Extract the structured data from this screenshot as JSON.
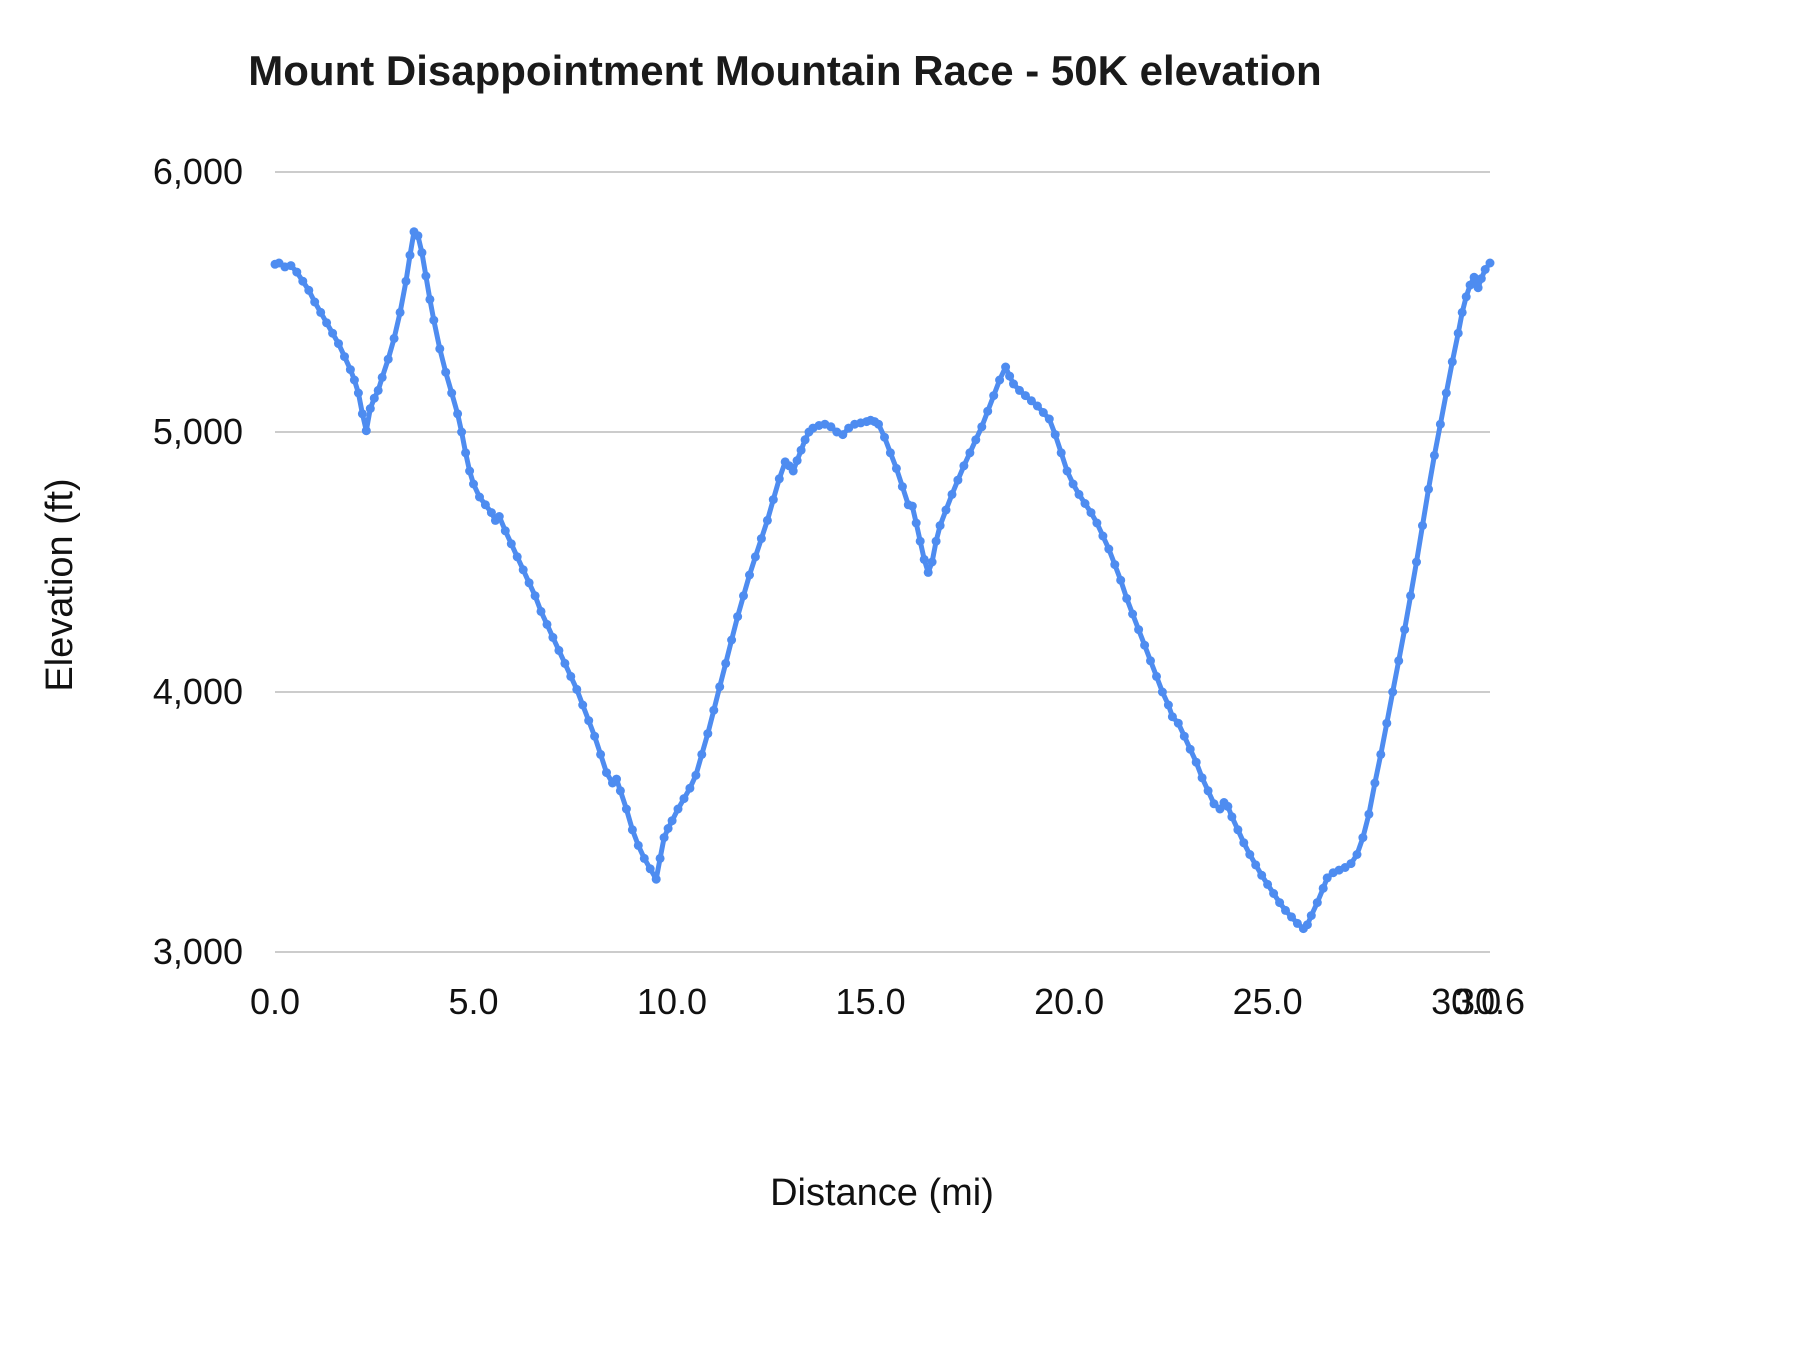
{
  "chart": {
    "title": "Mount Disappointment Mountain Race - 50K elevation",
    "x_axis_label": "Distance (mi)",
    "y_axis_label": "Elevation (ft)"
  },
  "chart_data": {
    "type": "line",
    "title": "Mount Disappointment Mountain Race - 50K elevation",
    "xlabel": "Distance (mi)",
    "ylabel": "Elevation (ft)",
    "xlim": [
      0,
      30.6
    ],
    "ylim": [
      3000,
      6000
    ],
    "grid": "horizontal-only",
    "legend": "none",
    "line_color": "#4e8cf0",
    "grid_color": "#cccccc",
    "x_ticks": [
      {
        "v": 0.0,
        "label": "0.0"
      },
      {
        "v": 5.0,
        "label": "5.0"
      },
      {
        "v": 10.0,
        "label": "10.0"
      },
      {
        "v": 15.0,
        "label": "15.0"
      },
      {
        "v": 20.0,
        "label": "20.0"
      },
      {
        "v": 25.0,
        "label": "25.0"
      },
      {
        "v": 30.0,
        "label": "30.0"
      },
      {
        "v": 30.6,
        "label": "30.6"
      }
    ],
    "y_ticks": [
      {
        "v": 3000,
        "label": "3,000"
      },
      {
        "v": 4000,
        "label": "4,000"
      },
      {
        "v": 5000,
        "label": "5,000"
      },
      {
        "v": 6000,
        "label": "6,000"
      }
    ],
    "points": [
      [
        0.0,
        5645
      ],
      [
        0.1,
        5650
      ],
      [
        0.25,
        5635
      ],
      [
        0.4,
        5640
      ],
      [
        0.55,
        5615
      ],
      [
        0.7,
        5580
      ],
      [
        0.85,
        5545
      ],
      [
        1.0,
        5500
      ],
      [
        1.15,
        5460
      ],
      [
        1.3,
        5420
      ],
      [
        1.45,
        5380
      ],
      [
        1.6,
        5340
      ],
      [
        1.75,
        5290
      ],
      [
        1.9,
        5240
      ],
      [
        2.0,
        5200
      ],
      [
        2.1,
        5150
      ],
      [
        2.2,
        5070
      ],
      [
        2.3,
        5005
      ],
      [
        2.4,
        5090
      ],
      [
        2.5,
        5130
      ],
      [
        2.6,
        5160
      ],
      [
        2.7,
        5210
      ],
      [
        2.85,
        5280
      ],
      [
        3.0,
        5360
      ],
      [
        3.15,
        5460
      ],
      [
        3.3,
        5580
      ],
      [
        3.4,
        5680
      ],
      [
        3.5,
        5770
      ],
      [
        3.6,
        5755
      ],
      [
        3.7,
        5690
      ],
      [
        3.8,
        5600
      ],
      [
        3.9,
        5510
      ],
      [
        4.0,
        5430
      ],
      [
        4.15,
        5320
      ],
      [
        4.3,
        5230
      ],
      [
        4.45,
        5150
      ],
      [
        4.6,
        5070
      ],
      [
        4.7,
        5000
      ],
      [
        4.8,
        4920
      ],
      [
        4.9,
        4850
      ],
      [
        5.0,
        4800
      ],
      [
        5.15,
        4750
      ],
      [
        5.3,
        4720
      ],
      [
        5.45,
        4690
      ],
      [
        5.55,
        4660
      ],
      [
        5.65,
        4675
      ],
      [
        5.8,
        4620
      ],
      [
        5.95,
        4570
      ],
      [
        6.1,
        4520
      ],
      [
        6.25,
        4470
      ],
      [
        6.4,
        4420
      ],
      [
        6.55,
        4370
      ],
      [
        6.7,
        4310
      ],
      [
        6.85,
        4260
      ],
      [
        7.0,
        4210
      ],
      [
        7.15,
        4160
      ],
      [
        7.3,
        4110
      ],
      [
        7.45,
        4060
      ],
      [
        7.6,
        4010
      ],
      [
        7.75,
        3950
      ],
      [
        7.9,
        3890
      ],
      [
        8.05,
        3830
      ],
      [
        8.2,
        3760
      ],
      [
        8.35,
        3690
      ],
      [
        8.5,
        3650
      ],
      [
        8.6,
        3665
      ],
      [
        8.7,
        3620
      ],
      [
        8.85,
        3550
      ],
      [
        9.0,
        3470
      ],
      [
        9.15,
        3410
      ],
      [
        9.3,
        3360
      ],
      [
        9.45,
        3320
      ],
      [
        9.6,
        3280
      ],
      [
        9.7,
        3360
      ],
      [
        9.8,
        3440
      ],
      [
        9.9,
        3475
      ],
      [
        10.0,
        3505
      ],
      [
        10.15,
        3550
      ],
      [
        10.3,
        3590
      ],
      [
        10.45,
        3630
      ],
      [
        10.6,
        3680
      ],
      [
        10.75,
        3760
      ],
      [
        10.9,
        3840
      ],
      [
        11.05,
        3930
      ],
      [
        11.2,
        4020
      ],
      [
        11.35,
        4110
      ],
      [
        11.5,
        4200
      ],
      [
        11.65,
        4290
      ],
      [
        11.8,
        4370
      ],
      [
        11.95,
        4450
      ],
      [
        12.1,
        4520
      ],
      [
        12.25,
        4590
      ],
      [
        12.4,
        4660
      ],
      [
        12.55,
        4740
      ],
      [
        12.7,
        4820
      ],
      [
        12.85,
        4885
      ],
      [
        12.95,
        4870
      ],
      [
        13.05,
        4850
      ],
      [
        13.15,
        4890
      ],
      [
        13.25,
        4930
      ],
      [
        13.35,
        4970
      ],
      [
        13.45,
        5000
      ],
      [
        13.55,
        5015
      ],
      [
        13.7,
        5025
      ],
      [
        13.85,
        5030
      ],
      [
        14.0,
        5020
      ],
      [
        14.15,
        5000
      ],
      [
        14.3,
        4990
      ],
      [
        14.45,
        5015
      ],
      [
        14.6,
        5030
      ],
      [
        14.75,
        5035
      ],
      [
        14.9,
        5040
      ],
      [
        15.0,
        5045
      ],
      [
        15.1,
        5040
      ],
      [
        15.2,
        5030
      ],
      [
        15.35,
        4980
      ],
      [
        15.5,
        4920
      ],
      [
        15.65,
        4860
      ],
      [
        15.8,
        4790
      ],
      [
        15.95,
        4720
      ],
      [
        16.05,
        4715
      ],
      [
        16.15,
        4650
      ],
      [
        16.25,
        4580
      ],
      [
        16.35,
        4510
      ],
      [
        16.45,
        4460
      ],
      [
        16.55,
        4500
      ],
      [
        16.65,
        4580
      ],
      [
        16.75,
        4640
      ],
      [
        16.9,
        4700
      ],
      [
        17.05,
        4760
      ],
      [
        17.2,
        4815
      ],
      [
        17.35,
        4870
      ],
      [
        17.5,
        4920
      ],
      [
        17.65,
        4970
      ],
      [
        17.8,
        5020
      ],
      [
        17.95,
        5080
      ],
      [
        18.1,
        5140
      ],
      [
        18.25,
        5200
      ],
      [
        18.4,
        5250
      ],
      [
        18.5,
        5215
      ],
      [
        18.6,
        5185
      ],
      [
        18.75,
        5160
      ],
      [
        18.9,
        5140
      ],
      [
        19.05,
        5120
      ],
      [
        19.2,
        5100
      ],
      [
        19.35,
        5075
      ],
      [
        19.5,
        5050
      ],
      [
        19.65,
        4990
      ],
      [
        19.8,
        4920
      ],
      [
        19.95,
        4850
      ],
      [
        20.1,
        4800
      ],
      [
        20.25,
        4760
      ],
      [
        20.4,
        4725
      ],
      [
        20.55,
        4690
      ],
      [
        20.7,
        4650
      ],
      [
        20.85,
        4600
      ],
      [
        21.0,
        4550
      ],
      [
        21.15,
        4490
      ],
      [
        21.3,
        4430
      ],
      [
        21.45,
        4360
      ],
      [
        21.6,
        4300
      ],
      [
        21.75,
        4240
      ],
      [
        21.9,
        4180
      ],
      [
        22.05,
        4120
      ],
      [
        22.2,
        4060
      ],
      [
        22.35,
        4000
      ],
      [
        22.5,
        3950
      ],
      [
        22.6,
        3905
      ],
      [
        22.75,
        3880
      ],
      [
        22.9,
        3830
      ],
      [
        23.05,
        3780
      ],
      [
        23.2,
        3730
      ],
      [
        23.35,
        3670
      ],
      [
        23.5,
        3620
      ],
      [
        23.65,
        3570
      ],
      [
        23.8,
        3550
      ],
      [
        23.9,
        3575
      ],
      [
        24.0,
        3560
      ],
      [
        24.1,
        3520
      ],
      [
        24.25,
        3470
      ],
      [
        24.4,
        3420
      ],
      [
        24.55,
        3375
      ],
      [
        24.7,
        3335
      ],
      [
        24.85,
        3295
      ],
      [
        25.0,
        3260
      ],
      [
        25.15,
        3225
      ],
      [
        25.3,
        3190
      ],
      [
        25.45,
        3160
      ],
      [
        25.6,
        3135
      ],
      [
        25.75,
        3110
      ],
      [
        25.9,
        3090
      ],
      [
        26.0,
        3105
      ],
      [
        26.1,
        3140
      ],
      [
        26.25,
        3190
      ],
      [
        26.4,
        3245
      ],
      [
        26.5,
        3285
      ],
      [
        26.65,
        3305
      ],
      [
        26.8,
        3315
      ],
      [
        26.95,
        3325
      ],
      [
        27.1,
        3340
      ],
      [
        27.25,
        3375
      ],
      [
        27.4,
        3440
      ],
      [
        27.55,
        3530
      ],
      [
        27.7,
        3650
      ],
      [
        27.85,
        3760
      ],
      [
        28.0,
        3880
      ],
      [
        28.15,
        4000
      ],
      [
        28.3,
        4120
      ],
      [
        28.45,
        4240
      ],
      [
        28.6,
        4370
      ],
      [
        28.75,
        4500
      ],
      [
        28.9,
        4640
      ],
      [
        29.05,
        4780
      ],
      [
        29.2,
        4910
      ],
      [
        29.35,
        5030
      ],
      [
        29.5,
        5150
      ],
      [
        29.65,
        5270
      ],
      [
        29.8,
        5380
      ],
      [
        29.9,
        5460
      ],
      [
        30.0,
        5520
      ],
      [
        30.1,
        5565
      ],
      [
        30.2,
        5595
      ],
      [
        30.3,
        5555
      ],
      [
        30.38,
        5590
      ],
      [
        30.48,
        5625
      ],
      [
        30.6,
        5650
      ]
    ]
  }
}
